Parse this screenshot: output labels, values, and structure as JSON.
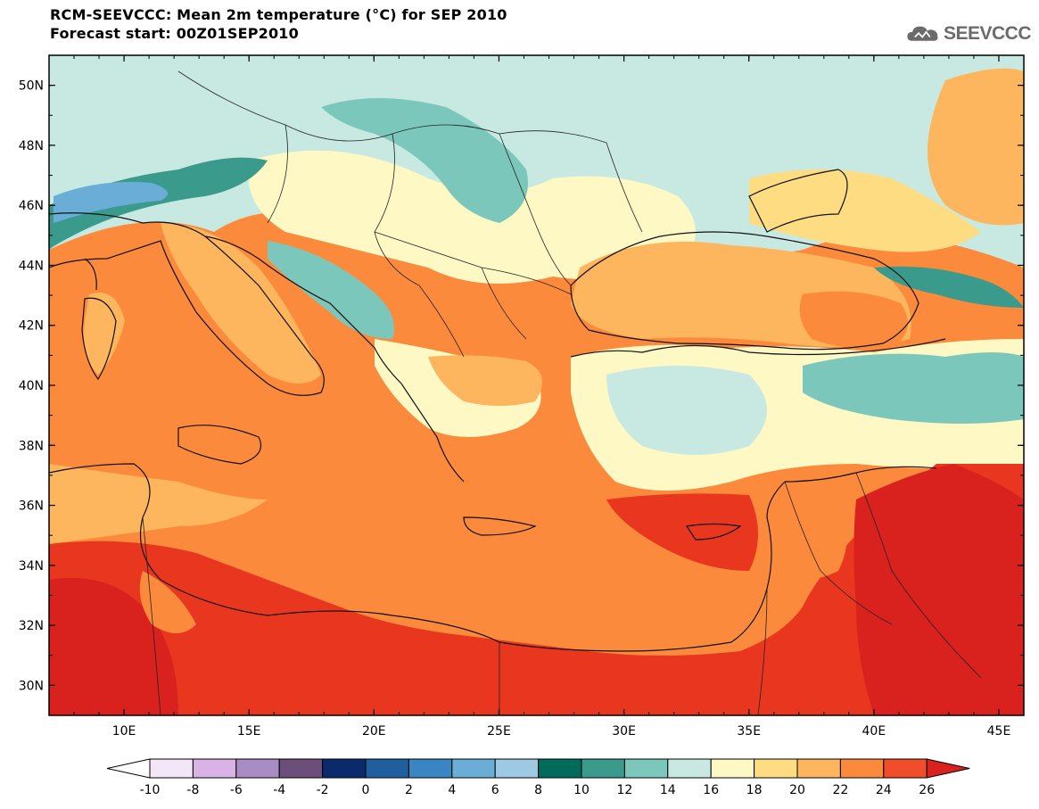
{
  "header": {
    "title": "RCM-SEEVCCC: Mean 2m temperature (°C) for SEP 2010",
    "subtitle": "Forecast start: 00Z01SEP2010"
  },
  "logo": {
    "text": "SEEVCCC",
    "icon": "cloud-icon"
  },
  "axes": {
    "lat_labels": [
      "50N",
      "48N",
      "46N",
      "44N",
      "42N",
      "40N",
      "38N",
      "36N",
      "34N",
      "32N",
      "30N"
    ],
    "lat_values": [
      50,
      48,
      46,
      44,
      42,
      40,
      38,
      36,
      34,
      32,
      30
    ],
    "lon_labels": [
      "10E",
      "15E",
      "20E",
      "25E",
      "30E",
      "35E",
      "40E",
      "45E"
    ],
    "lon_values": [
      10,
      15,
      20,
      25,
      30,
      35,
      40,
      45
    ],
    "lon_range": [
      7,
      46
    ],
    "lat_range": [
      29,
      51
    ]
  },
  "colorbar": {
    "labels": [
      "-10",
      "-8",
      "-6",
      "-4",
      "-2",
      "0",
      "2",
      "4",
      "6",
      "8",
      "10",
      "12",
      "14",
      "16",
      "18",
      "20",
      "22",
      "24",
      "26"
    ],
    "colors": [
      "#f2e6f7",
      "#d9b3e6",
      "#a98cc4",
      "#6b4f7a",
      "#0b2a6b",
      "#1f5f9e",
      "#3a86c2",
      "#6aaed8",
      "#9dc9e3",
      "#006b5a",
      "#3a9a8c",
      "#7cc7bb",
      "#c7e9e2",
      "#fdf8c4",
      "#fddc82",
      "#fdb55e",
      "#fb8a3c",
      "#f04e2b",
      "#d9211e"
    ]
  },
  "colors": {
    "sea_warm": "#fb8a3c",
    "hot": "#e8361f",
    "very_hot": "#d9211e",
    "mild": "#fdb55e",
    "cool": "#fdf8c4",
    "cold": "#c7e9e2",
    "teal": "#7cc7bb",
    "deep_teal": "#3a9a8c"
  }
}
